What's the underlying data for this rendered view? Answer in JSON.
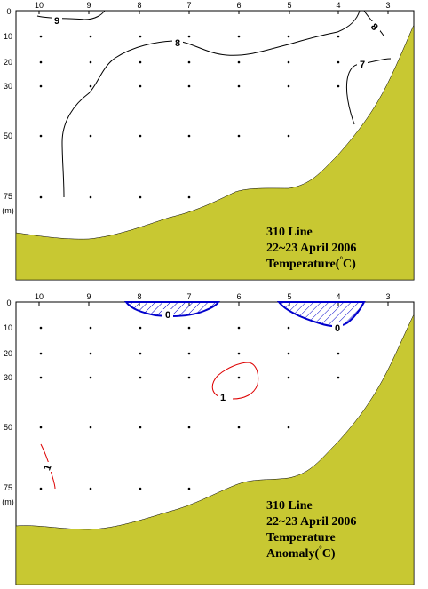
{
  "panels": [
    {
      "id": "top",
      "stations": [
        "10",
        "9",
        "8",
        "7",
        "6",
        "5",
        "4",
        "3"
      ],
      "depths": [
        "0",
        "10",
        "20",
        "30",
        "50",
        "75"
      ],
      "depth_unit": "(m)",
      "title_lines": [
        "310 Line",
        "22~23 April 2006",
        "Temperature(",
        "C)"
      ],
      "contour_labels": [
        "9",
        "8",
        "8",
        "7"
      ],
      "colors": {
        "land": "#c8c832",
        "contour": "#000000"
      }
    },
    {
      "id": "bottom",
      "stations": [
        "10",
        "9",
        "8",
        "7",
        "6",
        "5",
        "4",
        "3"
      ],
      "depths": [
        "0",
        "10",
        "20",
        "30",
        "50",
        "75"
      ],
      "depth_unit": "(m)",
      "title_lines": [
        "310 Line",
        "22~23 April 2006",
        "Temperature",
        "Anomaly(",
        "C)"
      ],
      "contour_labels": [
        "0",
        "0",
        "1",
        "1"
      ],
      "colors": {
        "land": "#c8c832",
        "negative": "#0000cc",
        "positive": "#dd0000"
      }
    }
  ]
}
